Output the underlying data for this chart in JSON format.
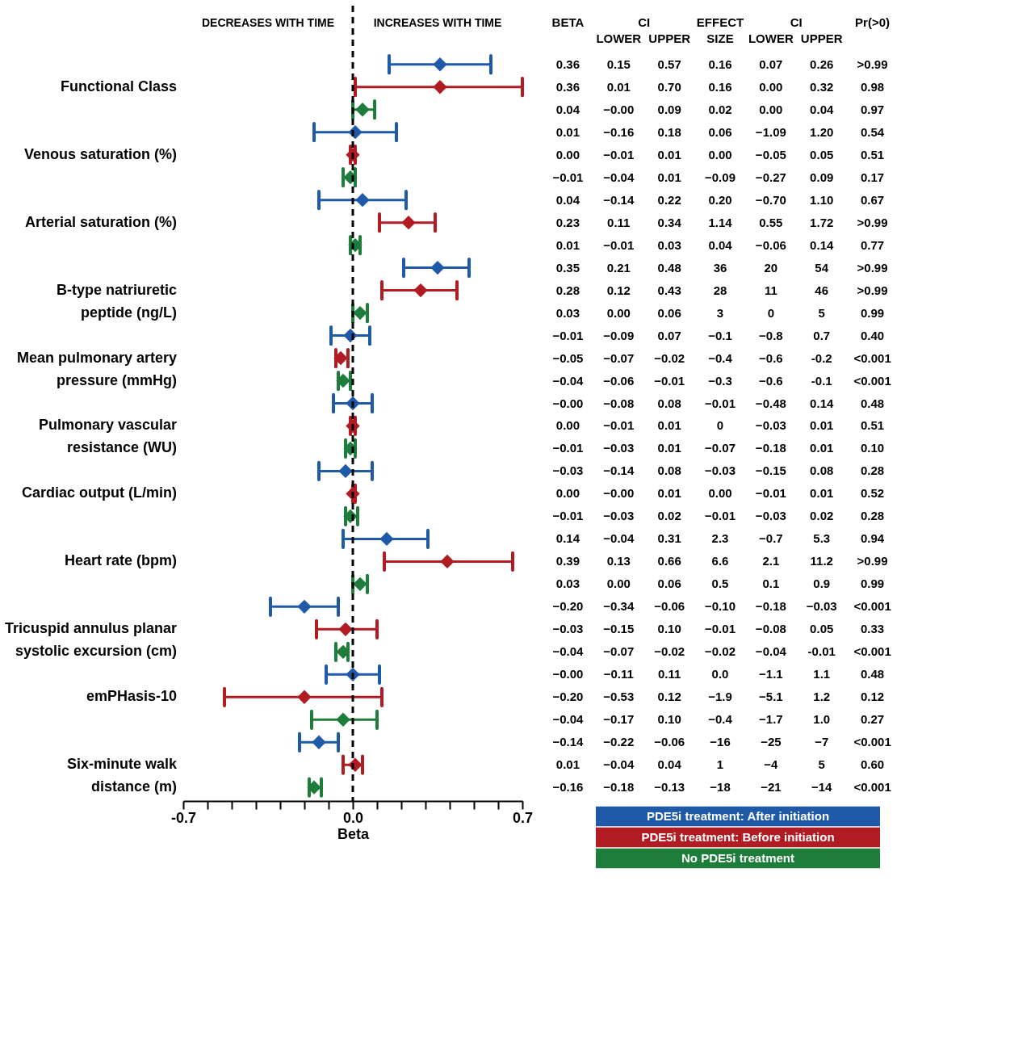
{
  "chart_data": [
    {
      "type": "scatter",
      "orientation": "horizontal",
      "xlabel": "Beta",
      "marker": "diamond",
      "legend": "bottom right",
      "categories": [
        "Functional Class",
        "Venous saturation (%)",
        "Arterial saturation (%)",
        "B-type natriuretic peptide (ng/L)",
        "Mean pulmonary artery pressure (mmHg)",
        "Pulmonary vascular resistance (WU)",
        "Cardiac output (L/min)",
        "Heart rate (bpm)",
        "Tricuspid annulus planar systolic excursion (cm)",
        "emPHasis-10",
        "Six-minute walk distance (m)"
      ],
      "series": [
        {
          "name": "PDE5i treatment: After initiation",
          "color": "#1f5aa8",
          "values": [
            0.36,
            0.01,
            0.04,
            0.35,
            -0.01,
            0.0,
            -0.03,
            0.14,
            -0.2,
            0.0,
            -0.14
          ],
          "errors": [
            [
              0.15,
              0.57
            ],
            [
              -0.16,
              0.18
            ],
            [
              -0.14,
              0.22
            ],
            [
              0.21,
              0.48
            ],
            [
              -0.09,
              0.07
            ],
            [
              -0.08,
              0.08
            ],
            [
              -0.14,
              0.08
            ],
            [
              -0.04,
              0.31
            ],
            [
              -0.34,
              -0.06
            ],
            [
              -0.11,
              0.11
            ],
            [
              -0.22,
              -0.06
            ]
          ]
        },
        {
          "name": "PDE5i treatment: Before initiation",
          "color": "#b01c22",
          "values": [
            0.36,
            0.0,
            0.23,
            0.28,
            -0.05,
            0.0,
            0.0,
            0.39,
            -0.03,
            -0.2,
            0.01
          ],
          "errors": [
            [
              0.01,
              0.7
            ],
            [
              -0.01,
              0.01
            ],
            [
              0.11,
              0.34
            ],
            [
              0.12,
              0.43
            ],
            [
              -0.07,
              -0.02
            ],
            [
              -0.01,
              0.01
            ],
            [
              0.0,
              0.01
            ],
            [
              0.13,
              0.66
            ],
            [
              -0.15,
              0.1
            ],
            [
              -0.53,
              0.12
            ],
            [
              -0.04,
              0.04
            ]
          ]
        },
        {
          "name": "No PDE5i treatment",
          "color": "#1e7d3a",
          "values": [
            0.04,
            -0.01,
            0.01,
            0.03,
            -0.04,
            -0.01,
            -0.01,
            0.03,
            -0.04,
            -0.04,
            -0.16
          ],
          "errors": [
            [
              0.0,
              0.09
            ],
            [
              -0.04,
              0.01
            ],
            [
              -0.01,
              0.03
            ],
            [
              0.0,
              0.06
            ],
            [
              -0.06,
              -0.01
            ],
            [
              -0.03,
              0.01
            ],
            [
              -0.03,
              0.02
            ],
            [
              0.0,
              0.06
            ],
            [
              -0.07,
              -0.02
            ],
            [
              -0.17,
              0.1
            ],
            [
              -0.18,
              -0.13
            ]
          ]
        }
      ],
      "xlim": [
        -0.7,
        0.7
      ],
      "xticks": [
        {
          "value": -0.7,
          "label": "-0.7"
        },
        {
          "value": -0.6,
          "label": null
        },
        {
          "value": -0.5,
          "label": null
        },
        {
          "value": -0.4,
          "label": null
        },
        {
          "value": -0.3,
          "label": null
        },
        {
          "value": -0.2,
          "label": null
        },
        {
          "value": -0.1,
          "label": null
        },
        {
          "value": 0,
          "label": "0.0"
        },
        {
          "value": 0.1,
          "label": null
        },
        {
          "value": 0.2,
          "label": null
        },
        {
          "value": 0.3,
          "label": null
        },
        {
          "value": 0.4,
          "label": null
        },
        {
          "value": 0.5,
          "label": null
        },
        {
          "value": 0.6,
          "label": null
        },
        {
          "value": 0.7,
          "label": "0.7"
        }
      ],
      "ref_lines": [
        {
          "axis": "x",
          "value": 0,
          "line_style": "dashed",
          "color": "#000000"
        }
      ],
      "annotations": [
        "DECREASES WITH TIME",
        "INCREASES WITH TIME"
      ]
    },
    {
      "type": "other",
      "categories": [
        "BETA",
        "LOWER",
        "UPPER",
        "EFFECT SIZE",
        "LOWER",
        "UPPER",
        "Pr(>0)"
      ],
      "annotations": [
        "CI",
        "CI"
      ],
      "cell_labels": [
        [
          "0.36",
          "0.15",
          "0.57",
          "0.16",
          "0.07",
          "0.26",
          ">0.99"
        ],
        [
          "0.36",
          "0.01",
          "0.70",
          "0.16",
          "0.00",
          "0.32",
          "0.98"
        ],
        [
          "0.04",
          "−0.00",
          "0.09",
          "0.02",
          "0.00",
          "0.04",
          "0.97"
        ],
        [
          "0.01",
          "−0.16",
          "0.18",
          "0.06",
          "−1.09",
          "1.20",
          "0.54"
        ],
        [
          "0.00",
          "−0.01",
          "0.01",
          "0.00",
          "−0.05",
          "0.05",
          "0.51"
        ],
        [
          "−0.01",
          "−0.04",
          "0.01",
          "−0.09",
          "−0.27",
          "0.09",
          "0.17"
        ],
        [
          "0.04",
          "−0.14",
          "0.22",
          "0.20",
          "−0.70",
          "1.10",
          "0.67"
        ],
        [
          "0.23",
          "0.11",
          "0.34",
          "1.14",
          "0.55",
          "1.72",
          ">0.99"
        ],
        [
          "0.01",
          "−0.01",
          "0.03",
          "0.04",
          "−0.06",
          "0.14",
          "0.77"
        ],
        [
          "0.35",
          "0.21",
          "0.48",
          "36",
          "20",
          "54",
          ">0.99"
        ],
        [
          "0.28",
          "0.12",
          "0.43",
          "28",
          "11",
          "46",
          ">0.99"
        ],
        [
          "0.03",
          "0.00",
          "0.06",
          "3",
          "0",
          "5",
          "0.99"
        ],
        [
          "−0.01",
          "−0.09",
          "0.07",
          "−0.1",
          "−0.8",
          "0.7",
          "0.40"
        ],
        [
          "−0.05",
          "−0.07",
          "−0.02",
          "−0.4",
          "−0.6",
          "-0.2",
          "<0.001"
        ],
        [
          "−0.04",
          "−0.06",
          "−0.01",
          "−0.3",
          "−0.6",
          "-0.1",
          "<0.001"
        ],
        [
          "−0.00",
          "−0.08",
          "0.08",
          "−0.01",
          "−0.48",
          "0.14",
          "0.48"
        ],
        [
          "0.00",
          "−0.01",
          "0.01",
          "0",
          "−0.03",
          "0.01",
          "0.51"
        ],
        [
          "−0.01",
          "−0.03",
          "0.01",
          "−0.07",
          "−0.18",
          "0.01",
          "0.10"
        ],
        [
          "−0.03",
          "−0.14",
          "0.08",
          "−0.03",
          "−0.15",
          "0.08",
          "0.28"
        ],
        [
          "0.00",
          "−0.00",
          "0.01",
          "0.00",
          "−0.01",
          "0.01",
          "0.52"
        ],
        [
          "−0.01",
          "−0.03",
          "0.02",
          "−0.01",
          "−0.03",
          "0.02",
          "0.28"
        ],
        [
          "0.14",
          "−0.04",
          "0.31",
          "2.3",
          "−0.7",
          "5.3",
          "0.94"
        ],
        [
          "0.39",
          "0.13",
          "0.66",
          "6.6",
          "2.1",
          "11.2",
          ">0.99"
        ],
        [
          "0.03",
          "0.00",
          "0.06",
          "0.5",
          "0.1",
          "0.9",
          "0.99"
        ],
        [
          "−0.20",
          "−0.34",
          "−0.06",
          "−0.10",
          "−0.18",
          "−0.03",
          "<0.001"
        ],
        [
          "−0.03",
          "−0.15",
          "0.10",
          "−0.01",
          "−0.08",
          "0.05",
          "0.33"
        ],
        [
          "−0.04",
          "−0.07",
          "−0.02",
          "−0.02",
          "−0.04",
          "-0.01",
          "<0.001"
        ],
        [
          "−0.00",
          "−0.11",
          "0.11",
          "0.0",
          "−1.1",
          "1.1",
          "0.48"
        ],
        [
          "−0.20",
          "−0.53",
          "0.12",
          "−1.9",
          "−5.1",
          "1.2",
          "0.12"
        ],
        [
          "−0.04",
          "−0.17",
          "0.10",
          "−0.4",
          "−1.7",
          "1.0",
          "0.27"
        ],
        [
          "−0.14",
          "−0.22",
          "−0.06",
          "−16",
          "−25",
          "−7",
          "<0.001"
        ],
        [
          "0.01",
          "−0.04",
          "0.04",
          "1",
          "−4",
          "5",
          "0.60"
        ],
        [
          "−0.16",
          "−0.18",
          "−0.13",
          "−18",
          "−21",
          "−14",
          "<0.001"
        ]
      ]
    }
  ]
}
